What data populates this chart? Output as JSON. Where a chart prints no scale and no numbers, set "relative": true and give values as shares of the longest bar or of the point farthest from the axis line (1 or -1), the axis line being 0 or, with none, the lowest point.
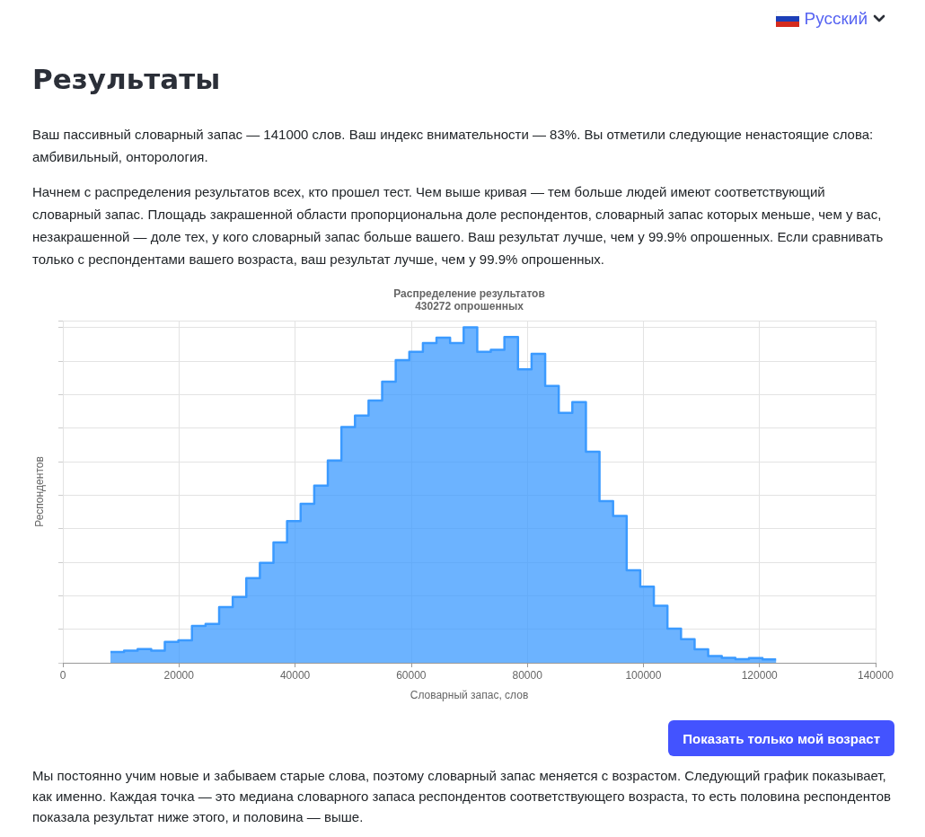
{
  "chart_data": {
    "type": "area",
    "title": "Распределение результатов",
    "subtitle": "430272 опрошенных",
    "xlabel": "Словарный запас, слов",
    "ylabel": "Респондентов",
    "annotations": [
      "Русский",
      "Результаты",
      "Ваш пассивный словарный запас — 141000 слов. Ваш индекс внимательности — 83%. Вы отметили следующие ненастоящие слова: амбивильный, онторология.",
      "Начнем с распределения результатов всех, кто прошел тест. Чем выше кривая — тем больше людей имеют соответствующий словарный запас. Площадь закрашенной области пропорциональна доле респондентов, словарный запас которых меньше, чем у вас, незакрашенной — доле тех, у кого словарный запас больше вашего. Ваш результат лучше, чем у 99.9% опрошенных. Если сравнивать только с респондентами вашего возраста, ваш результат лучше, чем у 99.9% опрошенных.",
      "Показать только мой возраст",
      "Мы постоянно учим новые и забываем старые слова, поэтому словарный запас меняется с возрастом. Следующий график показывает, как именно. Каждая точка — это медиана словарного запаса респондентов соответствующего возраста, то есть половина респондентов показала результат ниже этого, и половина — выше."
    ],
    "x": [
      8200,
      10540,
      10540,
      12880,
      12880,
      15220,
      15220,
      17560,
      17560,
      19900,
      19900,
      22240,
      22240,
      24580,
      24580,
      26920,
      26920,
      29260,
      29260,
      31600,
      31600,
      33940,
      33940,
      36280,
      36280,
      38620,
      38620,
      40960,
      40960,
      43300,
      43300,
      45640,
      45640,
      47980,
      47980,
      50320,
      50320,
      52660,
      52660,
      55000,
      55000,
      57340,
      57340,
      59680,
      59680,
      62020,
      62020,
      64360,
      64360,
      66700,
      66700,
      69040,
      69040,
      71380,
      71380,
      73720,
      73720,
      76060,
      76060,
      78400,
      78400,
      80740,
      80740,
      83080,
      83080,
      85420,
      85420,
      87760,
      87760,
      90100,
      90100,
      92440,
      92440,
      94780,
      94780,
      97120,
      97120,
      99460,
      99460,
      101800,
      101800,
      104140,
      104140,
      106480,
      106480,
      108820,
      108820,
      111160,
      111160,
      113500,
      113500,
      115840,
      115840,
      118180,
      118180,
      120520,
      120520,
      122860
    ],
    "values": [
      0.032,
      0.032,
      0.036,
      0.036,
      0.041,
      0.041,
      0.036,
      0.036,
      0.062,
      0.062,
      0.067,
      0.067,
      0.11,
      0.11,
      0.116,
      0.116,
      0.166,
      0.166,
      0.196,
      0.196,
      0.252,
      0.252,
      0.298,
      0.298,
      0.359,
      0.359,
      0.422,
      0.422,
      0.474,
      0.474,
      0.528,
      0.528,
      0.603,
      0.603,
      0.703,
      0.703,
      0.737,
      0.737,
      0.782,
      0.782,
      0.838,
      0.838,
      0.902,
      0.902,
      0.927,
      0.927,
      0.953,
      0.953,
      0.969,
      0.969,
      0.953,
      0.953,
      1,
      1,
      0.927,
      0.927,
      0.933,
      0.933,
      0.971,
      0.971,
      0.875,
      0.875,
      0.921,
      0.921,
      0.825,
      0.825,
      0.745,
      0.745,
      0.777,
      0.777,
      0.629,
      0.629,
      0.482,
      0.482,
      0.438,
      0.438,
      0.276,
      0.276,
      0.227,
      0.227,
      0.17,
      0.17,
      0.102,
      0.102,
      0.07,
      0.07,
      0.04,
      0.04,
      0.02,
      0.02,
      0.015,
      0.015,
      0.011,
      0.011,
      0.014,
      0.014,
      0.01,
      0.01
    ],
    "color": "#3b9aff",
    "relative": true,
    "xlim": [
      0,
      140000
    ],
    "xticks": [
      0,
      20000,
      40000,
      60000,
      80000,
      100000,
      120000,
      140000
    ],
    "grid": true
  }
}
